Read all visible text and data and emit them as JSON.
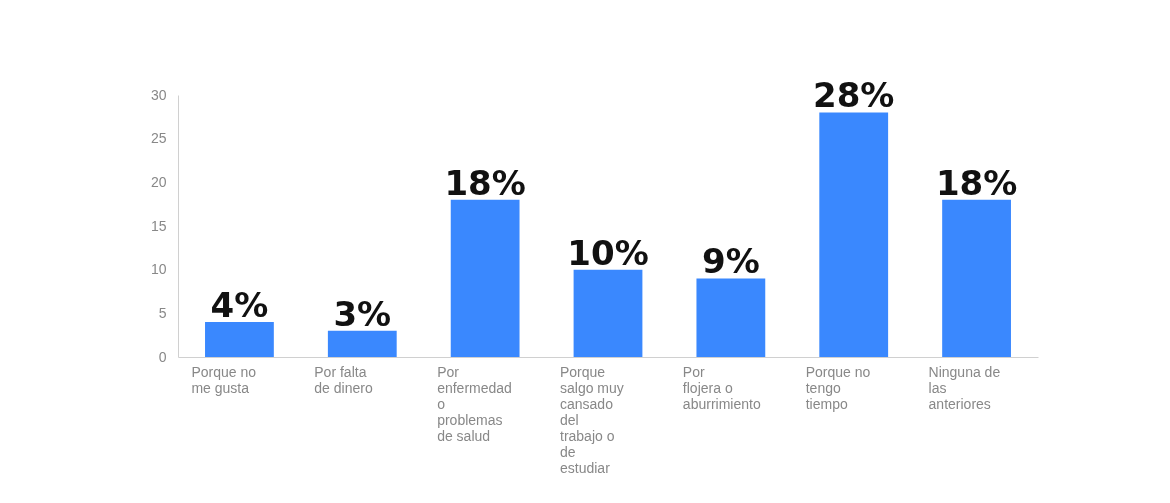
{
  "chart_data": {
    "type": "bar",
    "categories": [
      "Porque no me gusta",
      "Por falta de dinero",
      "Por enfermedad o problemas de salud",
      "Porque salgo muy cansado del trabajo o de estudiar",
      "Por flojera o aburrimiento",
      "Porque no tengo tiempo",
      "Ninguna de las anteriores"
    ],
    "values": [
      4,
      3,
      18,
      10,
      9,
      28,
      18
    ],
    "value_labels": [
      "4%",
      "3%",
      "18%",
      "10%",
      "9%",
      "28%",
      "18%"
    ],
    "color": "#3a88fe",
    "ylim": [
      0,
      30
    ],
    "yticks": [
      0,
      5,
      10,
      15,
      20,
      25,
      30
    ],
    "grid": false
  }
}
